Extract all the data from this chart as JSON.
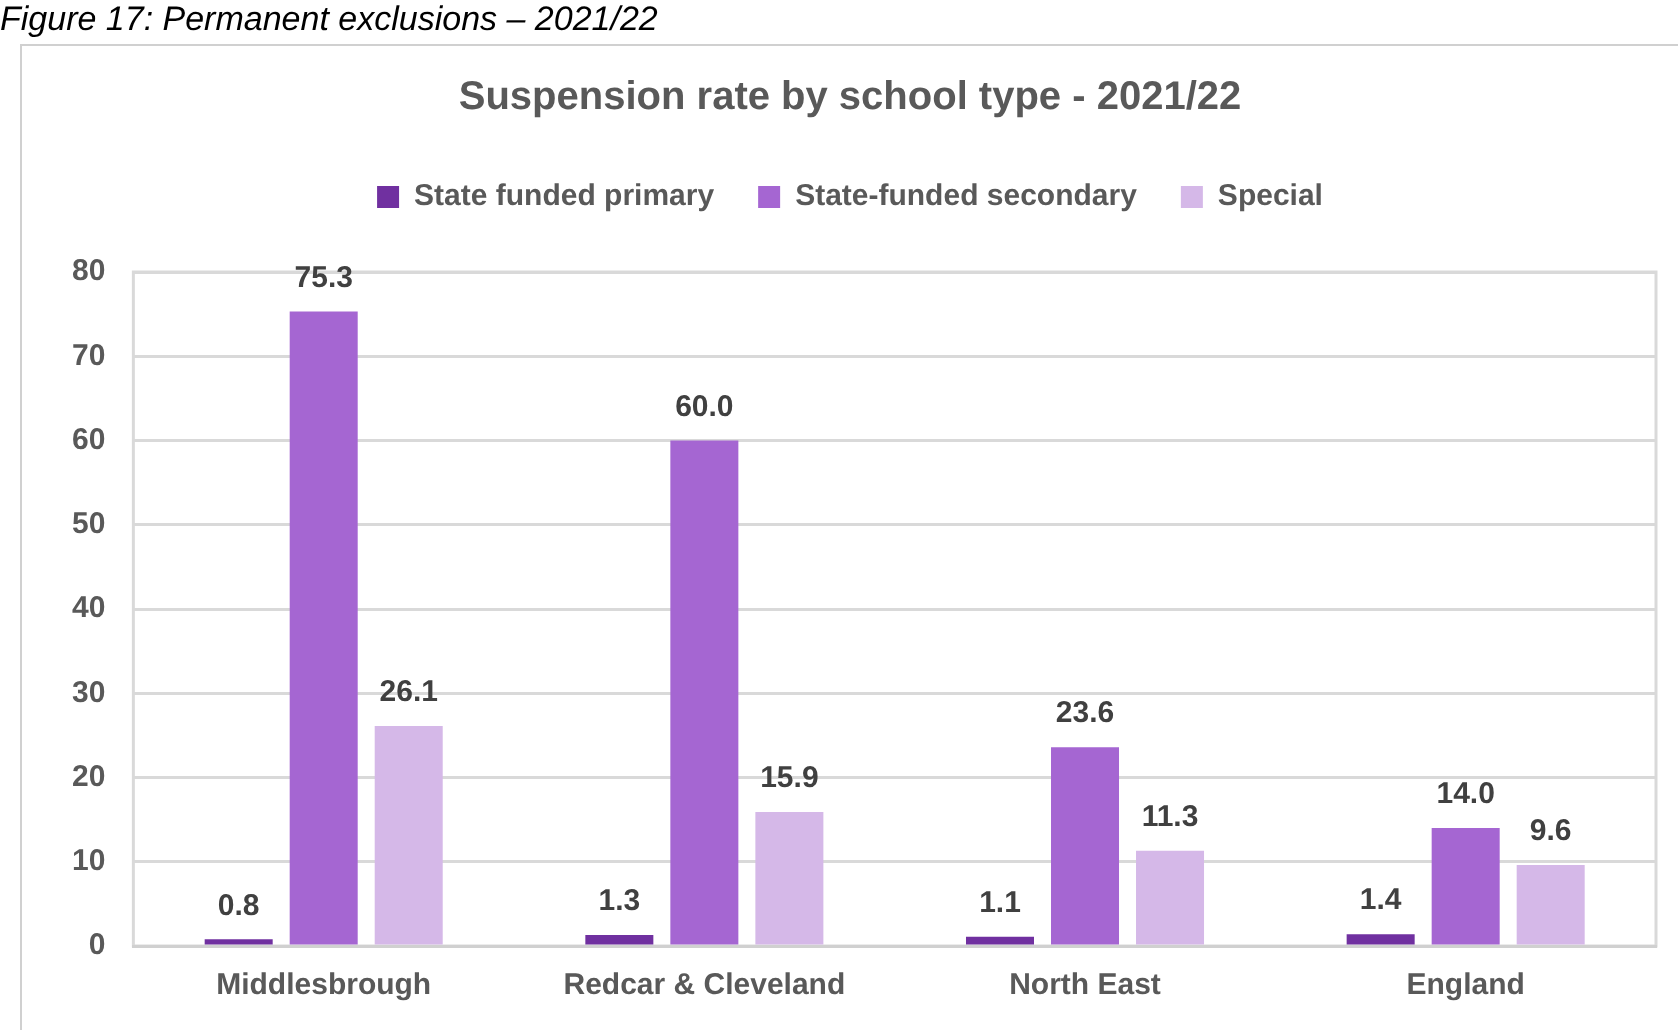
{
  "chart_data": {
    "type": "bar",
    "title": "Suspension rate by school type - 2021/22",
    "annotations": [
      "Figure 17: Permanent exclusions – 2021/22"
    ],
    "categories": [
      "Middlesbrough",
      "Redcar & Cleveland",
      "North East",
      "England"
    ],
    "series": [
      {
        "name": "State funded primary",
        "color": "#7030a0",
        "values": [
          0.8,
          1.3,
          1.1,
          1.4
        ],
        "value_labels": [
          "0.8",
          "1.3",
          "1.1",
          "1.4"
        ]
      },
      {
        "name": "State-funded secondary",
        "color": "#a566d2",
        "values": [
          75.3,
          60.0,
          23.6,
          14.0
        ],
        "value_labels": [
          "75.3",
          "60.0",
          "23.6",
          "14.0"
        ]
      },
      {
        "name": "Special",
        "color": "#d5b8e8",
        "values": [
          26.1,
          15.9,
          11.3,
          9.6
        ],
        "value_labels": [
          "26.1",
          "15.9",
          "11.3",
          "9.6"
        ]
      }
    ],
    "ylim": [
      0,
      80
    ],
    "yticks": [
      0,
      10,
      20,
      30,
      40,
      50,
      60,
      70,
      80
    ],
    "grid": "y",
    "legend": "top"
  }
}
